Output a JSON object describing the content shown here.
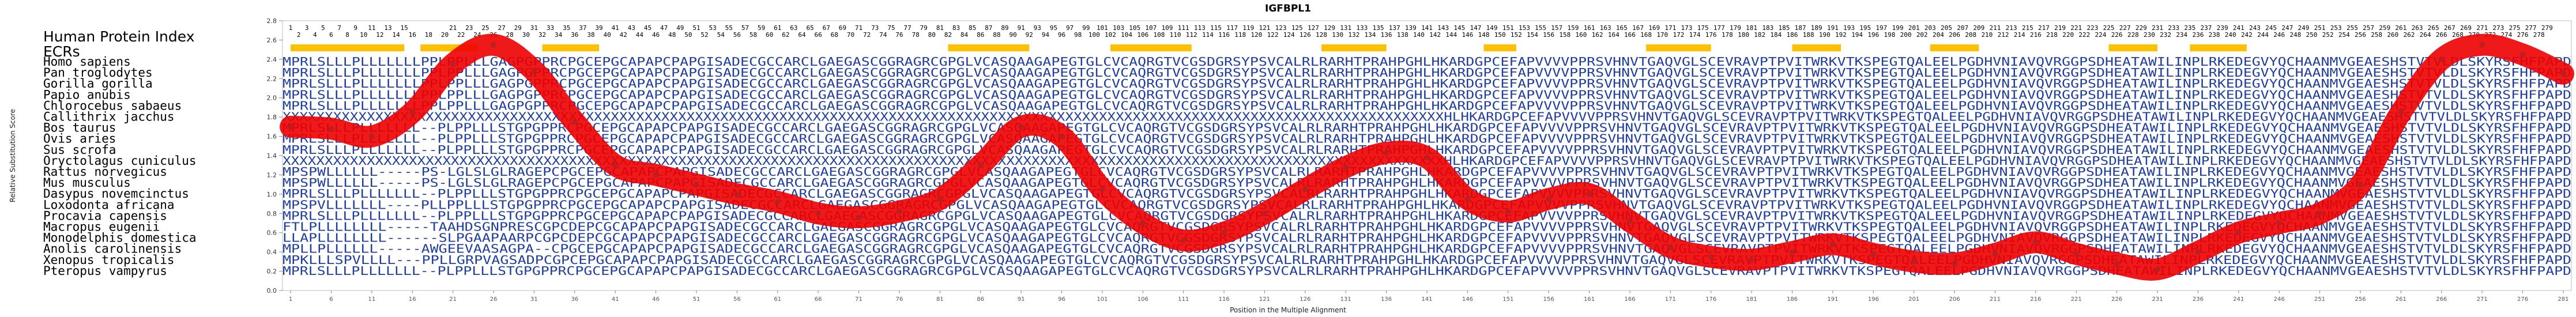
{
  "chart_data": {
    "type": "line",
    "title": "IGFBPL1",
    "xlabel": "Position in the Multiple Alignment",
    "ylabel": "Relative Substitution Score",
    "xlim": [
      0,
      282
    ],
    "ylim": [
      0.0,
      2.8
    ],
    "yticks": [
      "0.0",
      "0.2",
      "0.4",
      "0.6",
      "0.8",
      "1.0",
      "1.2",
      "1.4",
      "1.6",
      "1.8",
      "2.0",
      "2.2",
      "2.4",
      "2.6",
      "2.8"
    ],
    "xticks": [
      1,
      6,
      11,
      16,
      21,
      26,
      31,
      36,
      41,
      46,
      51,
      56,
      61,
      66,
      71,
      76,
      81,
      86,
      91,
      96,
      101,
      106,
      111,
      116,
      121,
      126,
      131,
      136,
      141,
      146,
      151,
      156,
      161,
      166,
      171,
      176,
      181,
      186,
      191,
      196,
      201,
      206,
      211,
      216,
      221,
      226,
      231,
      236,
      241,
      246,
      251,
      256,
      261,
      266,
      271,
      276,
      281
    ],
    "header_title": "Human Protein Index",
    "ecr_label": "ECRs",
    "ecr_regions": [
      [
        1,
        15
      ],
      [
        17,
        24
      ],
      [
        32,
        39
      ],
      [
        82,
        92
      ],
      [
        102,
        112
      ],
      [
        128,
        136
      ],
      [
        148,
        152
      ],
      [
        168,
        176
      ],
      [
        186,
        192
      ],
      [
        203,
        209
      ],
      [
        225,
        231
      ],
      [
        235,
        242
      ]
    ],
    "position_label_rows": [
      [
        1,
        3,
        5,
        7,
        9,
        11,
        13,
        15,
        21,
        23,
        25,
        27,
        29,
        31,
        33,
        35,
        37,
        39,
        41,
        43,
        45,
        47,
        49,
        51,
        53,
        55,
        57,
        59,
        61,
        63,
        65,
        67,
        69,
        71,
        73,
        75,
        77,
        79,
        81,
        83,
        85,
        87,
        89,
        91,
        93,
        95,
        97,
        99,
        101,
        103,
        105,
        107,
        109,
        111,
        113,
        115,
        117,
        119,
        121,
        123,
        125,
        127,
        129,
        131,
        133,
        135,
        137,
        139,
        141,
        143,
        145,
        147,
        149,
        151,
        153,
        155,
        157,
        159,
        161,
        163,
        165,
        167,
        169,
        171,
        173,
        175,
        177,
        179,
        181,
        183,
        185,
        187,
        189,
        191,
        193,
        195,
        197,
        199,
        201,
        203,
        205,
        207,
        209,
        211,
        213,
        215,
        217,
        219,
        221,
        223,
        225,
        227,
        229,
        231,
        233,
        235,
        237,
        239,
        241,
        243,
        245,
        247,
        249,
        251,
        253,
        255,
        257,
        259,
        261,
        263,
        265,
        267,
        269,
        271,
        273,
        275,
        277,
        279
      ],
      [
        2,
        4,
        6,
        8,
        10,
        12,
        14,
        16,
        18,
        20,
        22,
        24,
        26,
        28,
        30,
        32,
        34,
        36,
        38,
        40,
        42,
        44,
        46,
        48,
        50,
        52,
        54,
        56,
        58,
        60,
        62,
        64,
        66,
        68,
        70,
        72,
        74,
        76,
        78,
        80,
        82,
        84,
        86,
        88,
        90,
        92,
        94,
        96,
        98,
        100,
        102,
        104,
        106,
        108,
        110,
        112,
        114,
        116,
        118,
        120,
        122,
        124,
        126,
        128,
        130,
        132,
        134,
        136,
        138,
        140,
        142,
        144,
        146,
        148,
        150,
        152,
        154,
        156,
        158,
        160,
        162,
        164,
        166,
        168,
        170,
        172,
        174,
        176,
        178,
        180,
        182,
        184,
        186,
        188,
        190,
        192,
        194,
        196,
        198,
        200,
        202,
        204,
        206,
        208,
        210,
        212,
        214,
        216,
        218,
        220,
        222,
        224,
        226,
        228,
        230,
        232,
        234,
        236,
        238,
        240,
        242,
        244,
        246,
        248,
        250,
        252,
        254,
        256,
        258,
        260,
        262,
        264,
        266,
        268,
        270,
        272,
        274,
        276,
        278
      ]
    ],
    "species": [
      "Homo sapiens",
      "Pan troglodytes",
      "Gorilla gorilla",
      "Papio anubis",
      "Chlorocebus sabaeus",
      "Callithrix jacchus",
      "Bos taurus",
      "Ovis aries",
      "Sus scrofa",
      "Oryctolagus cuniculus",
      "Rattus norvegicus",
      "Mus musculus",
      "Dasypus novemcinctus",
      "Loxodonta africana",
      "Procavia capensis",
      "Macropus eugenii",
      "Monodelphis domestica",
      "Anolis carolinensis",
      "Xenopus tropicalis",
      "Pteropus vampyrus"
    ],
    "sequences": [
      "MPRLSLLLPLLLLLLLPPLPPLLLGAGPGPPRCPGCEPGCAPAPCPAPGISADECGCCARCLGAEGASCGGRAGRCGPGLVCASQAAGAPEGTGLCVCAQRGTVCGSDGRSYPSVCALRLRARHTPRAHPGHLHKARDGPCEFAPVVVVPPRSVHNVTGAQVGLSCEVRAVPTPVITWRKVTKSPEGTQALEELPGDHVNIAVQVRGGPSDHEATAWILINPLRKEDEGVYQCHAANMVGEAESHSTVTVLDLSKYRSFHFPAPD",
      "MPRLSLLLPLLLLLLLPPLPPLLLGAGPGPPRCPGCEPGCAPAPCPAPGISADECGCCARCLGAEGASCGGRAGRCGPGLVCASQAAGAPEGTGLCVCAQRGTVCGSDGRSYPSVCALRLRARHTPRAHPGHLHKARDGPCEFAPVVVVPPRSVHNVTGAQVGLSCEVRAVPTPVITWRKVTKSPEGTQALEELPGDHVNIAVQVRGGPSDHEATAWILINPLRKEDEGVYQCHAANMVGEAESHSTVTVLDLSKYRSFHFPAPD",
      "MPRLSLLLPLLLLLLLPPLPPLLLGAGPGPPRCPGCEPGCAPAPCPAPGISADECGCCARCLGAEGASCGGRAGRCGPGLVCASQAAGAPEGTGLCVCAQRGTVCGSDGRSYPSVCALRLRARHTPRAHPGHLHKARDGPCEFAPVVVVPPRSVHNVTGAQVGLSCEVRAVPTPVITWRKVTKSPEGTQALEELPGDHVNIAVQVRGGPSDHEATAWILINPLRKEDEGVYQCHAANMVGEAESHSTVTVLDLSKYRSFHFPAPD",
      "MPRLSLLLPLLLLLLLPPLPPLLLGAGPGPPRCPGCEPGCAPAPCPAPGISADECGCCARCLGAEGASCGGRAGRCGPGLVCASQAAGAPEGTGLCVCAQRGTVCGSDGRSYPSVCALRLRARHTPRAHPGHLHKARDGPCEFAPVVVVPPRSVHNVTGAQVGLSCEVRAVPTPVITWRKVTKSPEGTQALEELPGDHVNIAVQVRGGPSDHEATAWILINPLRKEDEGVYQCHAANMVGEAESHSTVTVLDLSKYRSFHFPAPD",
      "MPRLSLLLPLLLLLLLPPLPPLLLGAGPGPPRCPGCEPGCAPAPCPAPGISADECGCCARCLGAEGASCGGRAGRCGPGLVCASQAAGAPEGTGLCVCAQRGTVCGSDGRSYPSVCALRLRARHTPRAHPGHLHKARDGPCEFAPVVVVPPRSVHNVTGAQVGLSCEVRAVPTPVITWRKVTKSPEGTQALEELPGDHVNIAVQVRGGPSDHEATAWILINPLRKEDEGVYQCHAANMVGEAESHSTVTVLDLSKYRSFHFPAPD",
      "XXXXXXXXXXXXXXXXXXXXXXXXXXXXXXXXXXXXXXXXXXXXXXXXXXXXXXXXXXXXXXXXXXXXXXXXXXXXXXXXXXXXXXXXXXXXXXXXXXXXXXXXXXXXXXXXXXXXXXXXXXXXXXXXXXXXXXXXXXHLHKARDGPCEFAPVVVVPPRSVHNVTGAQVGLSCEVRAVPTPVITWRKVTKSPEGTQALEELPGDHVNIAVQVRGGPSDHEATAWILINPLRKEDEGVYQCHAANMVGEAESHSTVTVLDLSKYRSFHFPAPD",
      "MPRLSLLLPLLLLLLL--PLPPLLLSTGPGPPRCPGCEPGCAPAPCPAPGISADECGCCARCLGAEGASCGGRAGRCGPGLVCASQAAGAPEGTGLCVCAQRGTVCGSDGRSYPSVCALRLRARHTPRAHPGHLHKARDGPCEFAPVVVVPPRSVHNVTGAQVGLSCEVRAVPTPVITWRKVTKSPEGTQALEELPGDHVNIAVQVRGGPSDHEATAWILINPLRKEDEGVYQCHAANMVGEAESHSTVTVLDLSKYRSFHFPAPD",
      "MPRLSLLLPLLLLLLL--PLPPLLLSTGPGPPRCPGCEPGCAPAPCPAPGISADECGCCARCLGAEGASCGGRAGRCGPGLVCASQAAGAPEGTGLCVCAQRGTVCGSDGRSYPSVCALRLRARHTPRAHPGHLHKARDGPCEFAPVVVVPPRSVHNVTGAQVGLSCEVRAVPTPVITWRKVTKSPEGTQALEELPGDHVNIAVQVRGGPSDHEATAWILINPLRKEDEGVYQCHAANMVGEAESHSTVTVLDLSKYRSFHFPAPD",
      "MPRLSLLLPLLLLLLL--PLPPLLLSTGPGPPRCPGCEPGCAPAPCPAPGISADECGCCARCLGAEGASCGGRAGRCGPGLVCASQAAGAPEGTGLCVCAQRGTVCGSDGRSYPSVCALRLRARHTPRAHPGHLHKARDGPCEFAPVVVVPPRSVHNVTGAQVGLSCEVRAVPTPVITWRKVTKSPEGTQALEELPGDHVNIAVQVRGGPSDHEATAWILINPLRKEDEGVYQCHAANMVGEAESHSTVTVLDLSKYRSFHFPAPD",
      "XXXXXXXXXXXXXXXXXXXXXXXXXXXXXXXXXXXXXXXXXXXXXXXXXXXXXXXXXXXXXXXXXXXXXXXXXXXXXXXXXXXXXXXXXXXXXXXXXXXXXXXXXXXXXXXXXXXXXXXXXXXXXXXXXXXXXXXXXXHLHKARDGPCEFAPVVVVPPRSVHNVTGAQVGLSCEVRAVPTPVITWRKVTKSPEGTQALEELPGDHVNIAVQVRGGPSDHEATAWILINPLRKEDEGVYQCHAANMVGEAESHSTVTVLDLSKYRSFHFPAPD",
      "MPSPWLLLLLL-----PS-LGLSLGLRAGEPCPGCEPGCAPAPCPAPGISADECGCCARCLGAEGASCGGRAGRCGPGLVCASQAAGAPEGTGLCVCAQRGTVCGSDGRSYPSVCALRLRARHTPRAHPGHLHKARDGPCEFAPVVVVPPRSVHNVTGAQVGLSCEVRAVPTPVITWRKVTKSPEGTQALEELPGDHVNIAVQVRGGPSDHEATAWILINPLRKEDEGVYQCHAANMVGEAESHSTVTVLDLSKYRSFHFPAPD",
      "MPSPWLLLLLL-----PS-LGLSLGLRAGEPCPGCEPGCAPAPCPAPGISADECGCCARCLGAEGASCGGRAGRCGPGLVCASQAAGAPEGTGLCVCAQRGTVCGSDGRSYPSVCALRLRARHTPRAHPGHLHKARDGPCEFAPVVVVPPRSVHNVTGAQVGLSCEVRAVPTPVITWRKVTKSPEGTQALEELPGDHVNIAVQVRGGPSDHEATAWILINPLRKEDEGVYQCHAANMVGEAESHSTVTVLDLSKYRSFHFPAPD",
      "MPRLSLLLPLLLLLLL--PLPPLLLSTGPGPPRCPGCEPGCAPAPCPAPGISADECGCCARCLGAEGASCGGRAGRCGPGLVCASQAAGAPEGTGLCVCAQRGTVCGSDGRSYPSVCALRLRARHTPRAHPGHLHKARDGPCEFAPVVVVPPRSVHNVTGAQVGLSCEVRAVPTPVITWRKVTKSPEGTQALEELPGDHVNIAVQVRGGPSDHEATAWILINPLRKEDEGVYQCHAANMVGEAESHSTVTVLDLSKYRSFHFPAPD",
      "MPSPVLLLLLLL----PLLPPLLLSTGPGPPRCPGCEPGCAPAPCPAPGISADECGCCARCLGAEGASCGGRAGRCGPGLVCASQAAGAPEGTGLCVCAQRGTVCGSDGRSYPSVCALRLRARHTPRAHPGHLHKARDGPCEFAPVVVVPPRSVHNVTGAQVGLSCEVRAVPTPVITWRKVTKSPEGTQALEELPGDHVNIAVQVRGGPSDHEATAWILINPLRKEDEGVYQCHAANMVGEAESHSTVTVLDLSKYRSFHFPAPD",
      "MPRLSLLLPLLLLLLL--PLPPLLLSTGPGPPRCPGCEPGCAPAPCPAPGISADECGCCARCLGAEGASCGGRAGRCGPGLVCASQAAGAPEGTGLCVCAQRGTVCGSDGRSYPSVCALRLRARHTPRAHPGHLHKARDGPCEFAPVVVVPPRSVHNVTGAQVGLSCEVRAVPTPVITWRKVTKSPEGTQALEELPGDHVNIAVQVRGGPSDHEATAWILINPLRKEDEGVYQCHAANMVGEAESHSTVTVLDLSKYRSFHFPAPD",
      "FTLPLLLLLLLL-----TAAHDSGNPRESCGPCDEPCGCAPAPCPAPGISADECGCCARCLGAEGASCGGRAGRCGPGLVCASQAAGAPEGTGLCVCAQRGTVCGSDGRSYPSVCALRLRARHTPRAHPGHLHKARDGPCEFAPVVVVPPRSVHNVTGAQVGLSCEVRAVPTPVITWRKVTKSPEGTQALEELPGDHVNIAVQVRGGPSDHEATAWILINPLRKEDEGVYQCHAANMVGEAESHSTVTVLDLSKYRSFHFPAPD",
      "LLAPLLLLLLLL------SLPGAAPAARPCGPCDEPCGCAPAPCPAPGISADECGCCARCLGAEGASCGGRAGRCGPGLVCASQAAGAPEGTGLCVCAQRGTVCGSDGRSYPSVCALRLRARHTPRAHPGHLHKARDGPCEFAPVVVVPPRSVHNVTGAQVGLSCEVRAVPTPVITWRKVTKSPEGTQALEELPGDHVNIAVQVRGGPSDHEATAWILINPLRKEDEGVYQCHAANMVGEAESHSTVTVLDLSKYRSFHFPAPD",
      "MPLLPLLLLLL-----AWGEEVAASAGPA--CPGCEPGCAPAPCPAPGISADECGCCARCLGAEGASCGGRAGRCGPGLVCASQAAGAPEGTGLCVCAQRGTVCGSDGRSYPSVCALRLRARHTPRAHPGHLHKARDGPCEFAPVVVVPPRSVHNVTGAQVGLSCEVRAVPTPVITWRKVTKSPEGTQALEELPGDHVNIAVQVRGGPSDHEATAWILINPLRKEDEGVYQCHAANMVGEAESHSTVTVLDLSKYRSFHFPAPD",
      "MPKLLLSPVLLLL---PPLLGRPVAGSADPCGPCEPGCAPAPCPAPGISADECGCCARCLGAEGASCGGRAGRCGPGLVCASQAAGAPEGTGLCVCAQRGTVCGSDGRSYPSVCALRLRARHTPRAHPGHLHKARDGPCEFAPVVVVPPRSVHNVTGAQVGLSCEVRAVPTPVITWRKVTKSPEGTQALEELPGDHVNIAVQVRGGPSDHEATAWILINPLRKEDEGVYQCHAANMVGEAESHSTVTVLDLSKYRSFHFPAPD",
      "MPRLSLLLPLLLLLLL--PLPPLLLSTGPGPPRCPGCEPGCAPAPCPAPGISADECGCCARCLGAEGASCGGRAGRCGPGLVCASQAAGAPEGTGLCVCAQRGTVCGSDGRSYPSVCALRLRARHTPRAHPGHLHKARDGPCEFAPVVVVPPRSVHNVTGAQVGLSCEVRAVPTPVITWRKVTKSPEGTQALEELPGDHVNIAVQVRGGPSDHEATAWILINPLRKEDEGVYQCHAANMVGEAESHSTVTVLDLSKYRSFHFPAPD"
    ],
    "x": [
      1,
      6,
      11,
      16,
      21,
      26,
      31,
      36,
      41,
      46,
      51,
      56,
      61,
      66,
      71,
      76,
      81,
      86,
      91,
      96,
      101,
      106,
      111,
      116,
      121,
      126,
      131,
      136,
      141,
      146,
      151,
      156,
      161,
      166,
      171,
      176,
      181,
      186,
      191,
      196,
      201,
      206,
      211,
      216,
      221,
      226,
      231,
      236,
      241,
      246,
      251,
      256,
      261,
      266,
      271,
      276,
      281
    ],
    "y": [
      1.7,
      1.68,
      1.6,
      1.85,
      2.35,
      2.55,
      2.28,
      1.75,
      1.3,
      1.2,
      1.1,
      1.0,
      0.92,
      0.8,
      0.76,
      0.82,
      0.95,
      1.3,
      1.7,
      1.6,
      1.05,
      0.7,
      0.52,
      0.6,
      0.8,
      1.05,
      1.28,
      1.43,
      1.38,
      0.95,
      0.82,
      0.95,
      1.0,
      0.72,
      0.45,
      0.35,
      0.32,
      0.4,
      0.48,
      0.38,
      0.3,
      0.28,
      0.38,
      0.5,
      0.38,
      0.28,
      0.22,
      0.4,
      0.6,
      0.7,
      0.8,
      1.1,
      1.85,
      2.4,
      2.55,
      2.45,
      2.25
    ],
    "series_color": "#ee0000",
    "marker_color": "#b22222",
    "ecr_color": "#ffc000",
    "seq_color": "#1f3f9a"
  }
}
